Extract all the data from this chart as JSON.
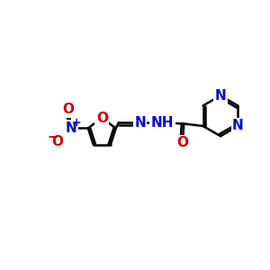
{
  "bg_color": "#ffffff",
  "bond_color": "#000000",
  "bond_width": 1.8,
  "atom_colors": {
    "N": "#0000cc",
    "O": "#cc0000",
    "C": "#000000"
  },
  "font_size_atoms": 11,
  "font_size_small": 8,
  "xlim": [
    0,
    12
  ],
  "ylim": [
    0,
    10
  ],
  "figsize": [
    3.0,
    3.0
  ],
  "dpi": 100
}
